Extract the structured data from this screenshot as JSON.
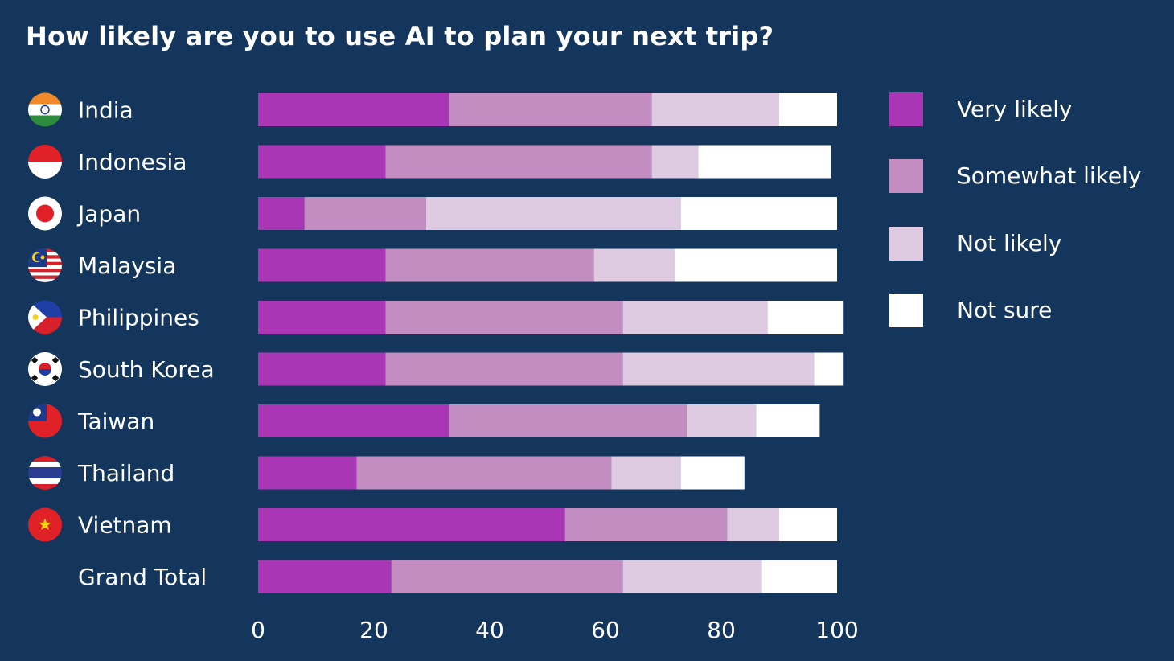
{
  "title": "How likely are you to use AI to plan your next trip?",
  "colors": {
    "background": "#14365c",
    "very_likely": "#a937b5",
    "somewhat_likely": "#c48dc1",
    "not_likely": "#decbe2",
    "not_sure": "#ffffff"
  },
  "legend": [
    {
      "label": "Very likely",
      "color": "#a937b5"
    },
    {
      "label": "Somewhat likely",
      "color": "#c48dc1"
    },
    {
      "label": "Not likely",
      "color": "#decbe2"
    },
    {
      "label": "Not sure",
      "color": "#ffffff"
    }
  ],
  "chart_data": {
    "type": "bar",
    "orientation": "horizontal",
    "stacked": true,
    "title": "How likely are you to use AI to plan your next trip?",
    "categories": [
      "India",
      "Indonesia",
      "Japan",
      "Malaysia",
      "Philippines",
      "South Korea",
      "Taiwan",
      "Thailand",
      "Vietnam",
      "Grand Total"
    ],
    "flags": [
      "india-flag-icon",
      "indonesia-flag-icon",
      "japan-flag-icon",
      "malaysia-flag-icon",
      "philippines-flag-icon",
      "south-korea-flag-icon",
      "taiwan-flag-icon",
      "thailand-flag-icon",
      "vietnam-flag-icon",
      null
    ],
    "series": [
      {
        "name": "Very likely",
        "values": [
          33,
          22,
          8,
          22,
          22,
          22,
          33,
          17,
          53,
          23
        ]
      },
      {
        "name": "Somewhat likely",
        "values": [
          35,
          46,
          21,
          36,
          41,
          41,
          41,
          44,
          28,
          40
        ]
      },
      {
        "name": "Not likely",
        "values": [
          22,
          8,
          44,
          14,
          25,
          33,
          12,
          12,
          9,
          24
        ]
      },
      {
        "name": "Not sure",
        "values": [
          10,
          23,
          27,
          28,
          13,
          5,
          11,
          11,
          10,
          13
        ]
      }
    ],
    "xlim": [
      0,
      100
    ],
    "xticks": [
      0,
      20,
      40,
      60,
      80,
      100
    ],
    "legend_position": "right",
    "grid": false
  }
}
